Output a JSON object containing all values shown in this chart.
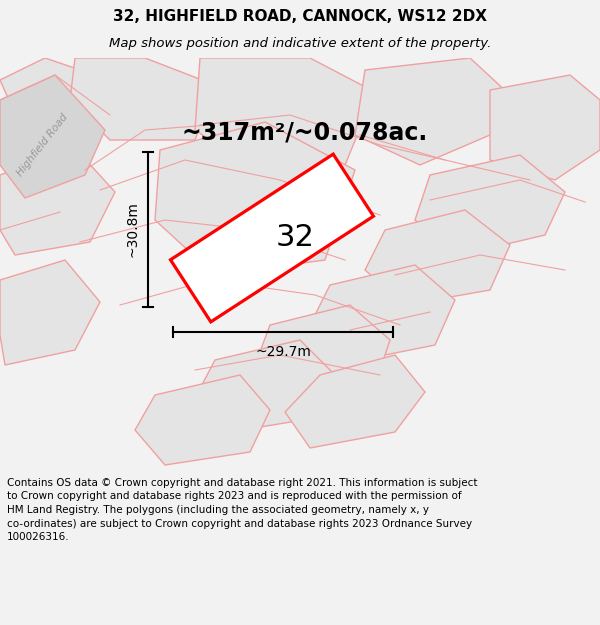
{
  "title_line1": "32, HIGHFIELD ROAD, CANNOCK, WS12 2DX",
  "title_line2": "Map shows position and indicative extent of the property.",
  "area_text": "~317m²/~0.078ac.",
  "property_number": "32",
  "dim_width": "~29.7m",
  "dim_height": "~30.8m",
  "road_label": "Highfield Road",
  "footer_lines": [
    "Contains OS data © Crown copyright and database right 2021. This information is subject",
    "to Crown copyright and database rights 2023 and is reproduced with the permission of",
    "HM Land Registry. The polygons (including the associated geometry, namely x, y",
    "co-ordinates) are subject to Crown copyright and database rights 2023 Ordnance Survey",
    "100026316."
  ],
  "bg_color": "#f2f2f2",
  "map_bg": "#efefef",
  "plot_fill": "#e4e4e4",
  "plot_outline": "#ff0000",
  "pink_line": "#f0a0a0",
  "footer_bg": "#ffffff",
  "title_fontsize": 11,
  "subtitle_fontsize": 9.5,
  "area_fontsize": 17,
  "number_fontsize": 22,
  "dim_fontsize": 10,
  "footer_fontsize": 7.5
}
